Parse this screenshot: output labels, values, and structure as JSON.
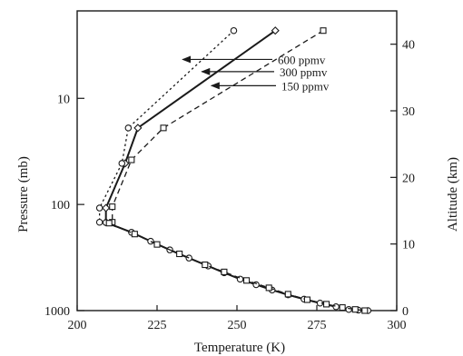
{
  "chart_data": {
    "type": "line",
    "xlabel": "Temperature (K)",
    "ylabel_left": "Pressure (mb)",
    "ylabel_right": "Altitude (km)",
    "xlim": [
      200,
      300
    ],
    "x_ticks": [
      200,
      225,
      250,
      275,
      300
    ],
    "y_left_scale": "log",
    "y_left_range_mb": [
      1000,
      1.5
    ],
    "y_left_ticks": [
      10,
      100,
      1000
    ],
    "y_right_range_km": [
      0,
      45
    ],
    "y_right_ticks": [
      0,
      10,
      20,
      30,
      40
    ],
    "grid": false,
    "series": [
      {
        "name": "600 ppmv",
        "marker": "diamond",
        "line": "solid",
        "color": "#1a1a1a",
        "points": [
          [
            262,
            2.3
          ],
          [
            219,
            19
          ],
          [
            215,
            41
          ],
          [
            209,
            108
          ],
          [
            209,
            147
          ]
        ]
      },
      {
        "name": "300 ppmv",
        "marker": "circle",
        "line": "dotted",
        "color": "#1a1a1a",
        "points": [
          [
            249,
            2.3
          ],
          [
            216,
            19
          ],
          [
            214,
            41
          ],
          [
            207,
            108
          ],
          [
            207,
            147
          ]
        ]
      },
      {
        "name": "150 ppmv",
        "marker": "square",
        "line": "dashed",
        "color": "#1a1a1a",
        "points": [
          [
            277,
            2.3
          ],
          [
            227,
            19
          ],
          [
            217,
            38
          ],
          [
            211,
            105
          ],
          [
            211,
            147
          ]
        ]
      },
      {
        "name": "",
        "marker": "circle",
        "line": "solid",
        "color": "#1a1a1a",
        "points": [
          [
            209,
            148
          ],
          [
            217,
            183
          ],
          [
            223,
            222
          ],
          [
            229,
            268
          ],
          [
            235,
            320
          ],
          [
            241,
            380
          ],
          [
            246,
            440
          ],
          [
            251,
            505
          ],
          [
            256,
            570
          ],
          [
            261,
            640
          ],
          [
            266,
            710
          ],
          [
            271,
            780
          ],
          [
            276,
            850
          ],
          [
            281,
            920
          ],
          [
            285,
            975
          ],
          [
            288,
            990
          ],
          [
            291,
            1000
          ]
        ]
      },
      {
        "name": "",
        "marker": "square",
        "line": "dashed",
        "color": "#1a1a1a",
        "points": [
          [
            210,
            150
          ],
          [
            218,
            190
          ],
          [
            225,
            238
          ],
          [
            232,
            292
          ],
          [
            240,
            370
          ],
          [
            246,
            432
          ],
          [
            253,
            520
          ],
          [
            260,
            610
          ],
          [
            266,
            700
          ],
          [
            272,
            790
          ],
          [
            278,
            870
          ],
          [
            283,
            935
          ],
          [
            287,
            975
          ],
          [
            290,
            1000
          ]
        ]
      }
    ],
    "annotations": [
      {
        "text": "600 ppmv",
        "target_series": "600 ppmv",
        "target_x": 233,
        "target_p": 4.3
      },
      {
        "text": "300 ppmv",
        "target_series": "300 ppmv",
        "target_x": 239,
        "target_p": 5.6
      },
      {
        "text": "150 ppmv",
        "target_series": "150 ppmv",
        "target_x": 242,
        "target_p": 7.6
      }
    ]
  }
}
